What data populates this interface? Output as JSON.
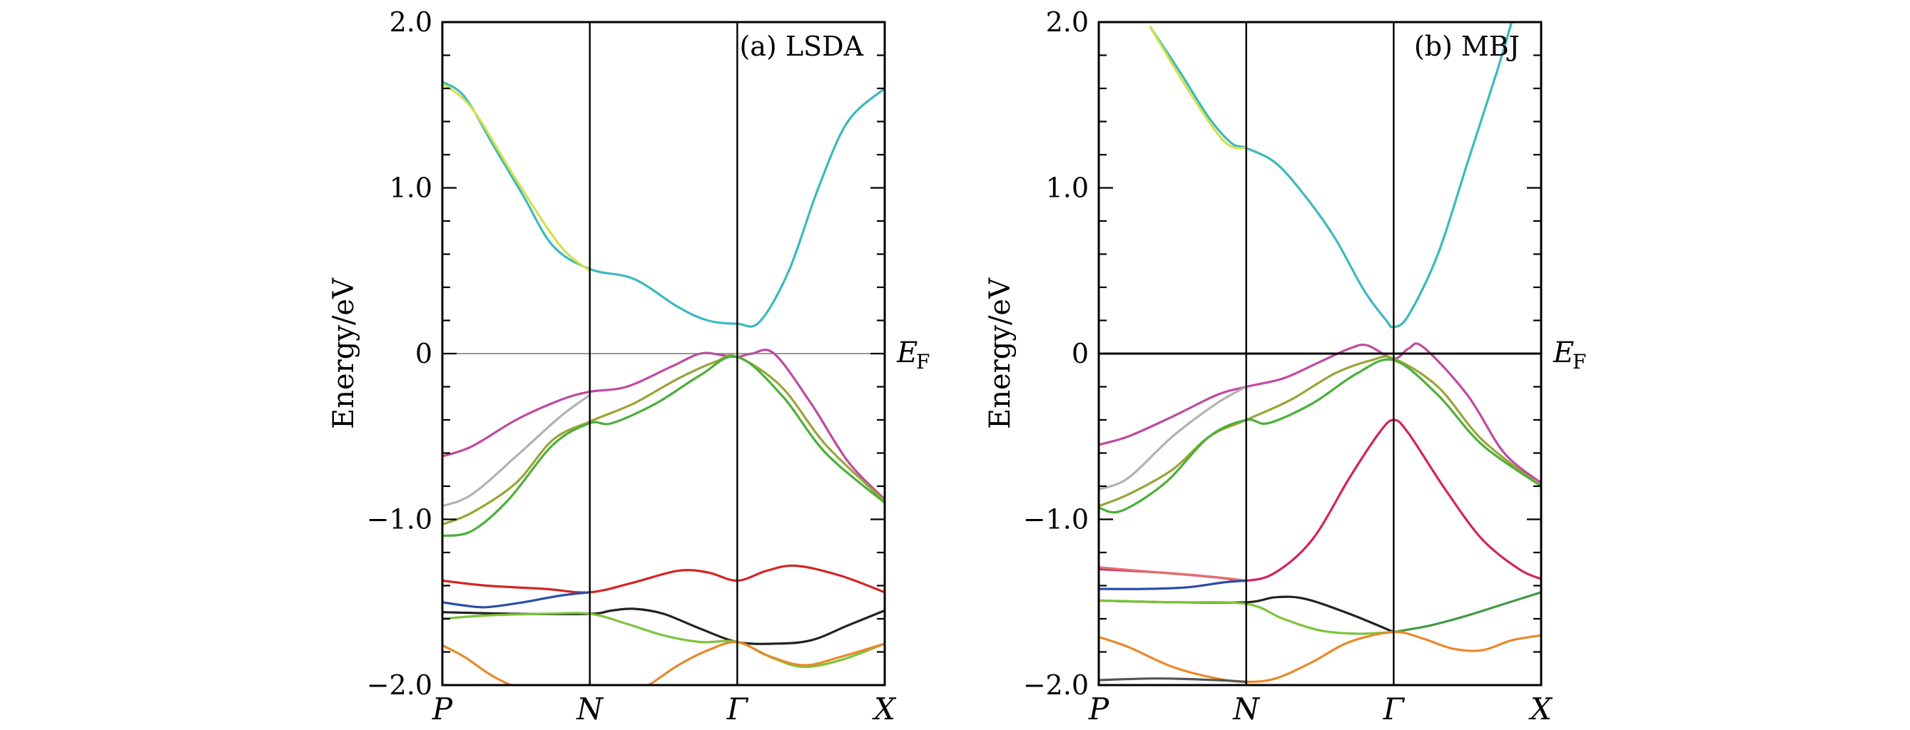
{
  "figure": {
    "ef_label_main": "E",
    "ef_label_sub": "F"
  },
  "chart_data": [
    {
      "type": "line",
      "title": "(a) LSDA",
      "ylabel": "Energy/eV",
      "ylim": [
        -2.0,
        2.0
      ],
      "yticks": [
        "2.0",
        "1.0",
        "0",
        "−1.0",
        "−2.0"
      ],
      "xticks": [
        "P",
        "N",
        "Γ",
        "X"
      ],
      "x_points": [
        0,
        1,
        2,
        3
      ],
      "fermi_level": 0,
      "series": [
        {
          "color": "#3bb9bd",
          "x": [
            0,
            0.15,
            0.35,
            0.55,
            0.75,
            1.0,
            1.3,
            1.6,
            1.8,
            2.0,
            2.15,
            2.35,
            2.55,
            2.75,
            3.0
          ],
          "y": [
            1.64,
            1.55,
            1.25,
            0.95,
            0.65,
            0.51,
            0.45,
            0.28,
            0.2,
            0.18,
            0.19,
            0.5,
            1.0,
            1.4,
            1.6
          ]
        },
        {
          "color": "#d4e04a",
          "x": [
            0,
            0.2,
            0.5,
            0.8,
            1.0
          ],
          "y": [
            1.63,
            1.48,
            1.05,
            0.65,
            0.5
          ]
        },
        {
          "color": "#c04aa0",
          "x": [
            0,
            0.2,
            0.5,
            0.8,
            1.0,
            1.25,
            1.55,
            1.75,
            1.9,
            2.0,
            2.1,
            2.25,
            2.5,
            2.75,
            3.0
          ],
          "y": [
            -0.62,
            -0.56,
            -0.4,
            -0.28,
            -0.23,
            -0.2,
            -0.08,
            0.0,
            -0.01,
            -0.02,
            0.0,
            0.0,
            -0.3,
            -0.65,
            -0.88
          ]
        },
        {
          "color": "#b2b2b2",
          "x": [
            0,
            0.2,
            0.5,
            0.8,
            1.0
          ],
          "y": [
            -0.92,
            -0.85,
            -0.62,
            -0.38,
            -0.25
          ]
        },
        {
          "color": "#9aa535",
          "x": [
            0,
            0.2,
            0.5,
            0.75,
            1.0,
            1.3,
            1.6,
            1.85,
            2.0,
            2.3,
            2.6,
            3.0
          ],
          "y": [
            -1.03,
            -0.96,
            -0.78,
            -0.52,
            -0.41,
            -0.3,
            -0.15,
            -0.05,
            -0.02,
            -0.2,
            -0.55,
            -0.89
          ]
        },
        {
          "color": "#4caf3c",
          "x": [
            0,
            0.2,
            0.45,
            0.75,
            1.0,
            1.15,
            1.45,
            1.75,
            2.0,
            2.3,
            2.6,
            3.0
          ],
          "y": [
            -1.1,
            -1.07,
            -0.88,
            -0.55,
            -0.42,
            -0.42,
            -0.3,
            -0.13,
            -0.02,
            -0.25,
            -0.6,
            -0.9
          ]
        },
        {
          "color": "#d42424",
          "x": [
            0,
            0.3,
            0.7,
            1.0,
            1.3,
            1.6,
            1.8,
            2.0,
            2.2,
            2.4,
            2.7,
            3.0
          ],
          "y": [
            -1.37,
            -1.4,
            -1.42,
            -1.44,
            -1.38,
            -1.31,
            -1.32,
            -1.37,
            -1.31,
            -1.28,
            -1.34,
            -1.44
          ]
        },
        {
          "color": "#2b4ca8",
          "x": [
            0,
            0.15,
            0.3,
            0.55,
            0.8,
            1.0
          ],
          "y": [
            -1.5,
            -1.52,
            -1.53,
            -1.5,
            -1.46,
            -1.44
          ]
        },
        {
          "color": "#222222",
          "x": [
            0,
            0.5,
            1.0,
            1.15,
            1.3,
            1.5,
            1.75,
            2.0,
            2.25,
            2.5,
            2.75,
            3.0
          ],
          "y": [
            -1.56,
            -1.57,
            -1.57,
            -1.55,
            -1.54,
            -1.57,
            -1.66,
            -1.74,
            -1.75,
            -1.73,
            -1.64,
            -1.55
          ]
        },
        {
          "color": "#7cc43a",
          "x": [
            0,
            0.3,
            0.7,
            1.0,
            1.25,
            1.5,
            1.75,
            2.0,
            2.25,
            2.45,
            2.7,
            3.0
          ],
          "y": [
            -1.6,
            -1.58,
            -1.57,
            -1.57,
            -1.63,
            -1.7,
            -1.74,
            -1.74,
            -1.84,
            -1.89,
            -1.85,
            -1.75
          ]
        },
        {
          "color": "#e8892a",
          "x": [
            0,
            0.15,
            0.35,
            0.6,
            0.8,
            1.0,
            1.2,
            1.4,
            1.6,
            1.8,
            2.0,
            2.2,
            2.45,
            2.7,
            3.0
          ],
          "y": [
            -1.76,
            -1.83,
            -1.95,
            -2.05,
            -2.1,
            -2.12,
            -2.1,
            -2.0,
            -1.88,
            -1.79,
            -1.74,
            -1.82,
            -1.88,
            -1.83,
            -1.75
          ]
        }
      ]
    },
    {
      "type": "line",
      "title": "(b) MBJ",
      "ylabel": "Energy/eV",
      "ylim": [
        -2.0,
        2.0
      ],
      "yticks": [
        "2.0",
        "1.0",
        "0",
        "−1.0",
        "−2.0"
      ],
      "xticks": [
        "P",
        "N",
        "Γ",
        "X"
      ],
      "x_points": [
        0,
        1,
        2,
        3
      ],
      "fermi_level": 0,
      "series": [
        {
          "color": "#3bb9bd",
          "x": [
            0.35,
            0.55,
            0.75,
            0.9,
            1.0,
            1.2,
            1.4,
            1.6,
            1.8,
            1.95,
            2.0,
            2.1,
            2.3,
            2.5,
            2.7,
            2.8
          ],
          "y": [
            1.97,
            1.7,
            1.42,
            1.27,
            1.24,
            1.15,
            0.95,
            0.7,
            0.38,
            0.2,
            0.16,
            0.23,
            0.6,
            1.15,
            1.7,
            2.0
          ]
        },
        {
          "color": "#d4e04a",
          "x": [
            0.35,
            0.6,
            0.85,
            1.0
          ],
          "y": [
            1.97,
            1.6,
            1.28,
            1.24
          ]
        },
        {
          "color": "#c04aa0",
          "x": [
            0,
            0.2,
            0.5,
            0.8,
            1.0,
            1.25,
            1.5,
            1.7,
            1.82,
            2.0,
            2.1,
            2.2,
            2.5,
            2.75,
            3.0
          ],
          "y": [
            -0.55,
            -0.5,
            -0.38,
            -0.25,
            -0.2,
            -0.15,
            -0.05,
            0.03,
            0.05,
            -0.03,
            0.03,
            0.04,
            -0.25,
            -0.6,
            -0.78
          ]
        },
        {
          "color": "#b2b2b2",
          "x": [
            0,
            0.2,
            0.5,
            0.8,
            1.0
          ],
          "y": [
            -0.82,
            -0.75,
            -0.5,
            -0.3,
            -0.2
          ]
        },
        {
          "color": "#9aa535",
          "x": [
            0,
            0.2,
            0.5,
            0.75,
            1.0,
            1.3,
            1.6,
            1.85,
            2.0,
            2.3,
            2.6,
            3.0
          ],
          "y": [
            -0.92,
            -0.85,
            -0.7,
            -0.5,
            -0.4,
            -0.28,
            -0.12,
            -0.04,
            -0.03,
            -0.2,
            -0.52,
            -0.8
          ]
        },
        {
          "color": "#4caf3c",
          "x": [
            0,
            0.15,
            0.45,
            0.75,
            1.0,
            1.15,
            1.45,
            1.75,
            2.0,
            2.3,
            2.6,
            3.0
          ],
          "y": [
            -0.93,
            -0.95,
            -0.78,
            -0.5,
            -0.4,
            -0.42,
            -0.3,
            -0.12,
            -0.04,
            -0.25,
            -0.55,
            -0.8
          ]
        },
        {
          "color": "#d1245c",
          "x": [
            0,
            0.4,
            0.8,
            1.0,
            1.2,
            1.45,
            1.7,
            1.9,
            2.0,
            2.1,
            2.35,
            2.6,
            2.85,
            3.0
          ],
          "y": [
            -1.3,
            -1.32,
            -1.35,
            -1.37,
            -1.32,
            -1.12,
            -0.75,
            -0.48,
            -0.4,
            -0.48,
            -0.82,
            -1.12,
            -1.3,
            -1.36
          ]
        },
        {
          "color": "#e07070",
          "x": [
            0,
            0.4,
            0.8,
            1.0
          ],
          "y": [
            -1.29,
            -1.32,
            -1.35,
            -1.37
          ]
        },
        {
          "color": "#2b4ca8",
          "x": [
            0,
            0.3,
            0.6,
            0.85,
            1.0
          ],
          "y": [
            -1.42,
            -1.42,
            -1.41,
            -1.38,
            -1.37
          ]
        },
        {
          "color": "#222222",
          "x": [
            0,
            0.5,
            1.0,
            1.2,
            1.4,
            1.7,
            2.0
          ],
          "y": [
            -1.49,
            -1.5,
            -1.5,
            -1.47,
            -1.48,
            -1.57,
            -1.68
          ]
        },
        {
          "color": "#7cc43a",
          "x": [
            0,
            0.5,
            1.0,
            1.25,
            1.5,
            1.75,
            2.0
          ],
          "y": [
            -1.49,
            -1.5,
            -1.51,
            -1.6,
            -1.67,
            -1.69,
            -1.68
          ]
        },
        {
          "color": "#3f9a45",
          "x": [
            2.0,
            2.25,
            2.5,
            2.75,
            3.0
          ],
          "y": [
            -1.68,
            -1.64,
            -1.58,
            -1.51,
            -1.44
          ]
        },
        {
          "color": "#e8892a",
          "x": [
            0,
            0.2,
            0.5,
            0.8,
            1.0,
            1.2,
            1.45,
            1.7,
            2.0,
            2.2,
            2.4,
            2.6,
            2.8,
            3.0
          ],
          "y": [
            -1.71,
            -1.77,
            -1.89,
            -1.96,
            -1.98,
            -1.96,
            -1.86,
            -1.74,
            -1.68,
            -1.72,
            -1.78,
            -1.79,
            -1.73,
            -1.7
          ]
        },
        {
          "color": "#555555",
          "x": [
            0,
            0.4,
            0.8,
            1.0
          ],
          "y": [
            -1.97,
            -1.96,
            -1.97,
            -1.98
          ]
        }
      ]
    }
  ]
}
